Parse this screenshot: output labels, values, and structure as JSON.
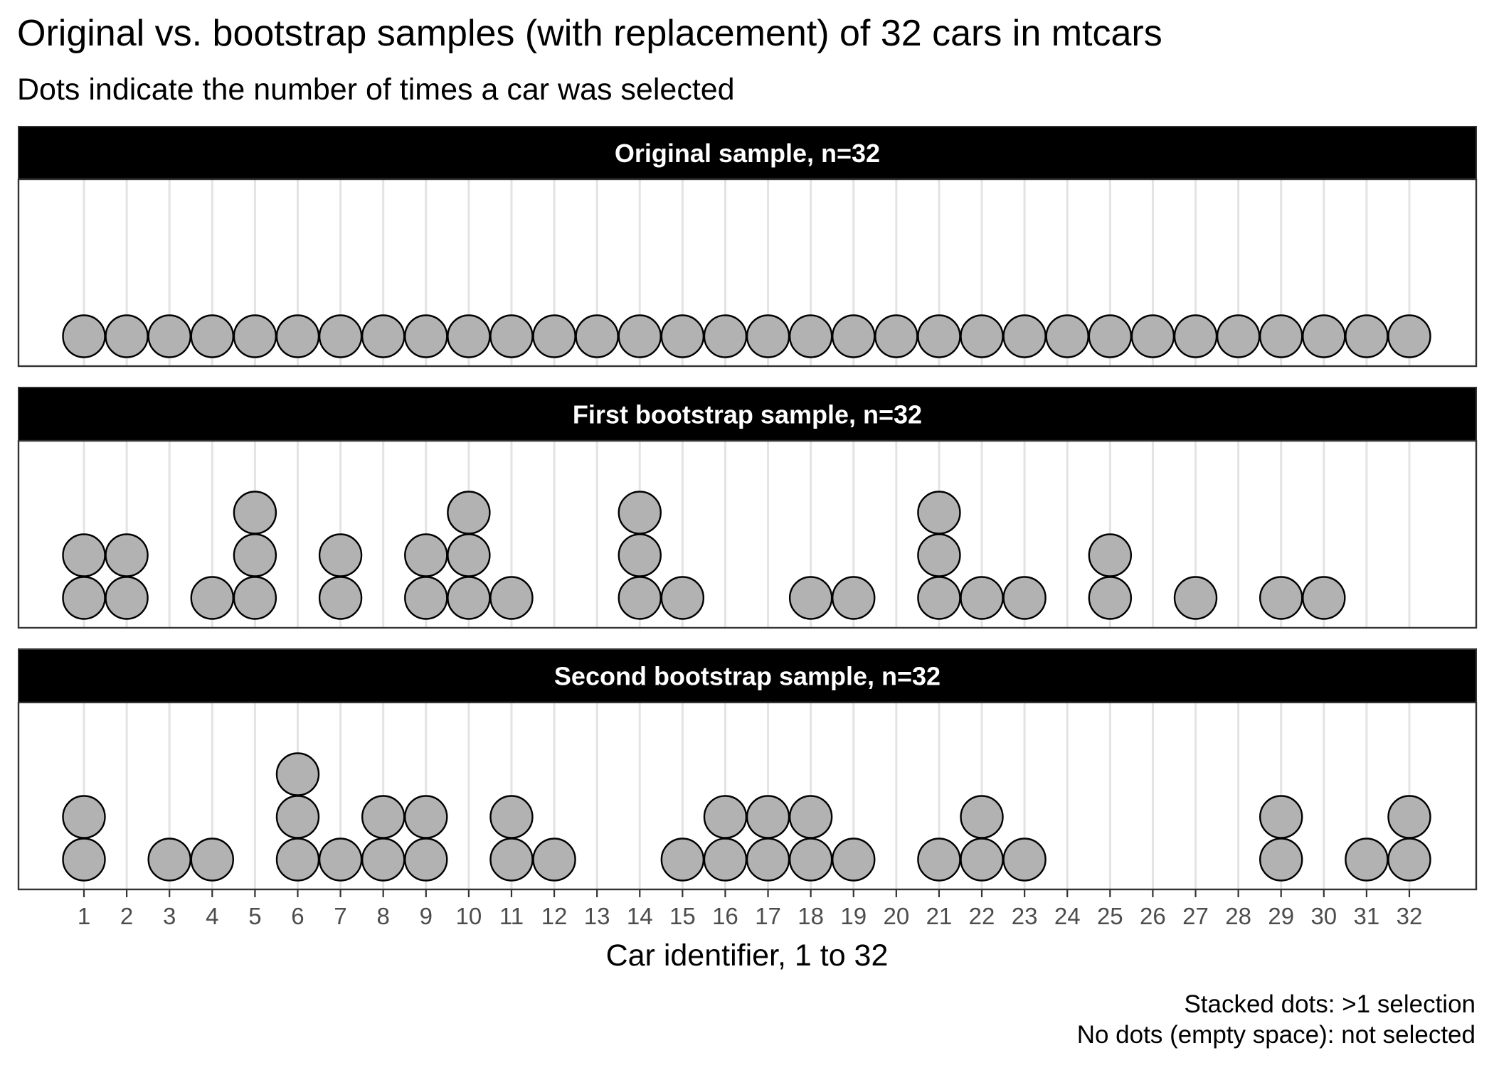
{
  "chart_data": {
    "type": "dotplot",
    "title": "Original vs. bootstrap samples (with replacement) of 32 cars in mtcars",
    "subtitle": "Dots indicate the number of times a car was selected",
    "xlabel": "Car identifier, 1 to 32",
    "x_ticks": [
      1,
      2,
      3,
      4,
      5,
      6,
      7,
      8,
      9,
      10,
      11,
      12,
      13,
      14,
      15,
      16,
      17,
      18,
      19,
      20,
      21,
      22,
      23,
      24,
      25,
      26,
      27,
      28,
      29,
      30,
      31,
      32
    ],
    "xlim": [
      0.5,
      32.5
    ],
    "caption_lines": [
      "Stacked dots: >1 selection",
      "No dots (empty space): not selected"
    ],
    "dot_color": "#b2b2b2",
    "dot_stroke": "#000000",
    "strip_color": "#000000",
    "strip_text_color": "#ffffff",
    "grid": true,
    "panels": [
      {
        "name": "Original sample, n=32",
        "counts": [
          1,
          1,
          1,
          1,
          1,
          1,
          1,
          1,
          1,
          1,
          1,
          1,
          1,
          1,
          1,
          1,
          1,
          1,
          1,
          1,
          1,
          1,
          1,
          1,
          1,
          1,
          1,
          1,
          1,
          1,
          1,
          1
        ]
      },
      {
        "name": "First bootstrap sample, n=32",
        "counts": [
          2,
          2,
          0,
          1,
          3,
          0,
          2,
          0,
          2,
          3,
          1,
          0,
          0,
          3,
          1,
          0,
          0,
          1,
          1,
          0,
          3,
          1,
          1,
          0,
          2,
          0,
          1,
          0,
          1,
          1,
          0,
          0
        ]
      },
      {
        "name": "Second bootstrap sample, n=32",
        "counts": [
          2,
          0,
          1,
          1,
          0,
          3,
          1,
          2,
          2,
          0,
          2,
          1,
          0,
          0,
          1,
          2,
          2,
          2,
          1,
          0,
          1,
          2,
          1,
          0,
          0,
          0,
          0,
          0,
          2,
          0,
          1,
          2
        ]
      }
    ]
  }
}
